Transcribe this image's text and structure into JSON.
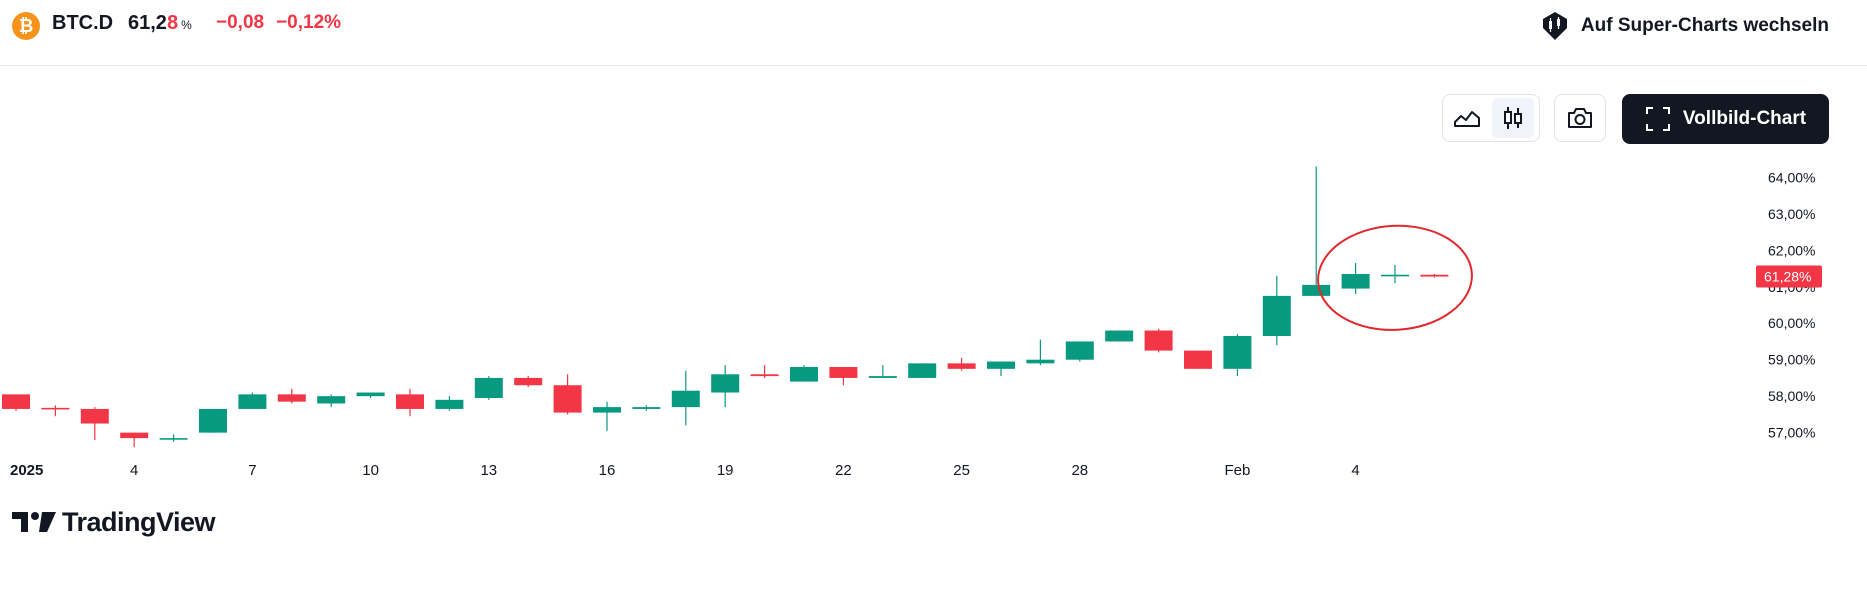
{
  "header": {
    "coin_icon_glyph": "₿",
    "symbol": "BTC.D",
    "price_main": "61,2",
    "price_tail": "8",
    "price_unit": "%",
    "change_abs": "−0,08",
    "change_pct": "−0,12%",
    "super_charts_label": "Auf Super-Charts wechseln"
  },
  "toolbar": {
    "area_chart_icon": "area-chart-icon",
    "candles_icon": "candles-icon",
    "camera_icon": "camera-icon",
    "fullscreen_label": "Vollbild-Chart"
  },
  "logo": {
    "text": "TradingView"
  },
  "colors": {
    "up": "#089981",
    "down": "#f23645",
    "annotation": "#e0282e"
  },
  "chart_data": {
    "type": "candlestick",
    "y_unit": "%",
    "ylim": [
      56.25,
      64.75
    ],
    "y_ticks": [
      57,
      58,
      59,
      60,
      61,
      62,
      63,
      64
    ],
    "y_tick_labels": [
      "57,00%",
      "58,00%",
      "59,00%",
      "60,00%",
      "61,00%",
      "62,00%",
      "63,00%",
      "64,00%"
    ],
    "x_ticks": [
      {
        "index": 0,
        "label": "2025"
      },
      {
        "index": 3,
        "label": "4"
      },
      {
        "index": 6,
        "label": "7"
      },
      {
        "index": 9,
        "label": "10"
      },
      {
        "index": 12,
        "label": "13"
      },
      {
        "index": 15,
        "label": "16"
      },
      {
        "index": 18,
        "label": "19"
      },
      {
        "index": 21,
        "label": "22"
      },
      {
        "index": 24,
        "label": "25"
      },
      {
        "index": 27,
        "label": "28"
      },
      {
        "index": 31,
        "label": "Feb"
      },
      {
        "index": 34,
        "label": "4"
      }
    ],
    "last_value_label": "61,28%",
    "last_value": 61.28,
    "candles": [
      {
        "o": 58.05,
        "h": 58.05,
        "l": 57.6,
        "c": 57.65
      },
      {
        "o": 57.68,
        "h": 57.75,
        "l": 57.45,
        "c": 57.65
      },
      {
        "o": 57.65,
        "h": 57.7,
        "l": 56.8,
        "c": 57.25
      },
      {
        "o": 57.0,
        "h": 57.0,
        "l": 56.6,
        "c": 56.85
      },
      {
        "o": 56.85,
        "h": 56.95,
        "l": 56.75,
        "c": 56.85
      },
      {
        "o": 57.0,
        "h": 57.65,
        "l": 57.0,
        "c": 57.65
      },
      {
        "o": 57.65,
        "h": 58.1,
        "l": 57.65,
        "c": 58.05
      },
      {
        "o": 58.05,
        "h": 58.2,
        "l": 57.8,
        "c": 57.85
      },
      {
        "o": 57.8,
        "h": 58.05,
        "l": 57.7,
        "c": 58.0
      },
      {
        "o": 58.0,
        "h": 58.1,
        "l": 57.95,
        "c": 58.1
      },
      {
        "o": 58.05,
        "h": 58.2,
        "l": 57.45,
        "c": 57.65
      },
      {
        "o": 57.65,
        "h": 58.0,
        "l": 57.6,
        "c": 57.9
      },
      {
        "o": 57.95,
        "h": 58.55,
        "l": 57.9,
        "c": 58.5
      },
      {
        "o": 58.5,
        "h": 58.55,
        "l": 58.25,
        "c": 58.3
      },
      {
        "o": 58.3,
        "h": 58.6,
        "l": 57.5,
        "c": 57.55
      },
      {
        "o": 57.55,
        "h": 57.85,
        "l": 57.05,
        "c": 57.7
      },
      {
        "o": 57.65,
        "h": 57.75,
        "l": 57.6,
        "c": 57.7
      },
      {
        "o": 57.7,
        "h": 58.7,
        "l": 57.2,
        "c": 58.15
      },
      {
        "o": 58.1,
        "h": 58.85,
        "l": 57.7,
        "c": 58.6
      },
      {
        "o": 58.6,
        "h": 58.85,
        "l": 58.5,
        "c": 58.55
      },
      {
        "o": 58.4,
        "h": 58.85,
        "l": 58.4,
        "c": 58.8
      },
      {
        "o": 58.8,
        "h": 58.8,
        "l": 58.3,
        "c": 58.5
      },
      {
        "o": 58.5,
        "h": 58.85,
        "l": 58.5,
        "c": 58.55
      },
      {
        "o": 58.5,
        "h": 58.9,
        "l": 58.5,
        "c": 58.9
      },
      {
        "o": 58.9,
        "h": 59.05,
        "l": 58.7,
        "c": 58.75
      },
      {
        "o": 58.75,
        "h": 58.95,
        "l": 58.55,
        "c": 58.95
      },
      {
        "o": 58.9,
        "h": 59.55,
        "l": 58.85,
        "c": 59.0
      },
      {
        "o": 59.0,
        "h": 59.5,
        "l": 58.95,
        "c": 59.5
      },
      {
        "o": 59.5,
        "h": 59.8,
        "l": 59.5,
        "c": 59.8
      },
      {
        "o": 59.8,
        "h": 59.85,
        "l": 59.2,
        "c": 59.25
      },
      {
        "o": 59.25,
        "h": 59.25,
        "l": 58.75,
        "c": 58.75
      },
      {
        "o": 58.75,
        "h": 59.7,
        "l": 58.55,
        "c": 59.65
      },
      {
        "o": 59.65,
        "h": 61.3,
        "l": 59.4,
        "c": 60.75
      },
      {
        "o": 60.75,
        "h": 64.3,
        "l": 60.75,
        "c": 61.05
      },
      {
        "o": 60.95,
        "h": 61.65,
        "l": 60.8,
        "c": 61.35
      },
      {
        "o": 61.3,
        "h": 61.6,
        "l": 61.1,
        "c": 61.33
      },
      {
        "o": 61.33,
        "h": 61.35,
        "l": 61.25,
        "c": 61.28
      }
    ]
  }
}
